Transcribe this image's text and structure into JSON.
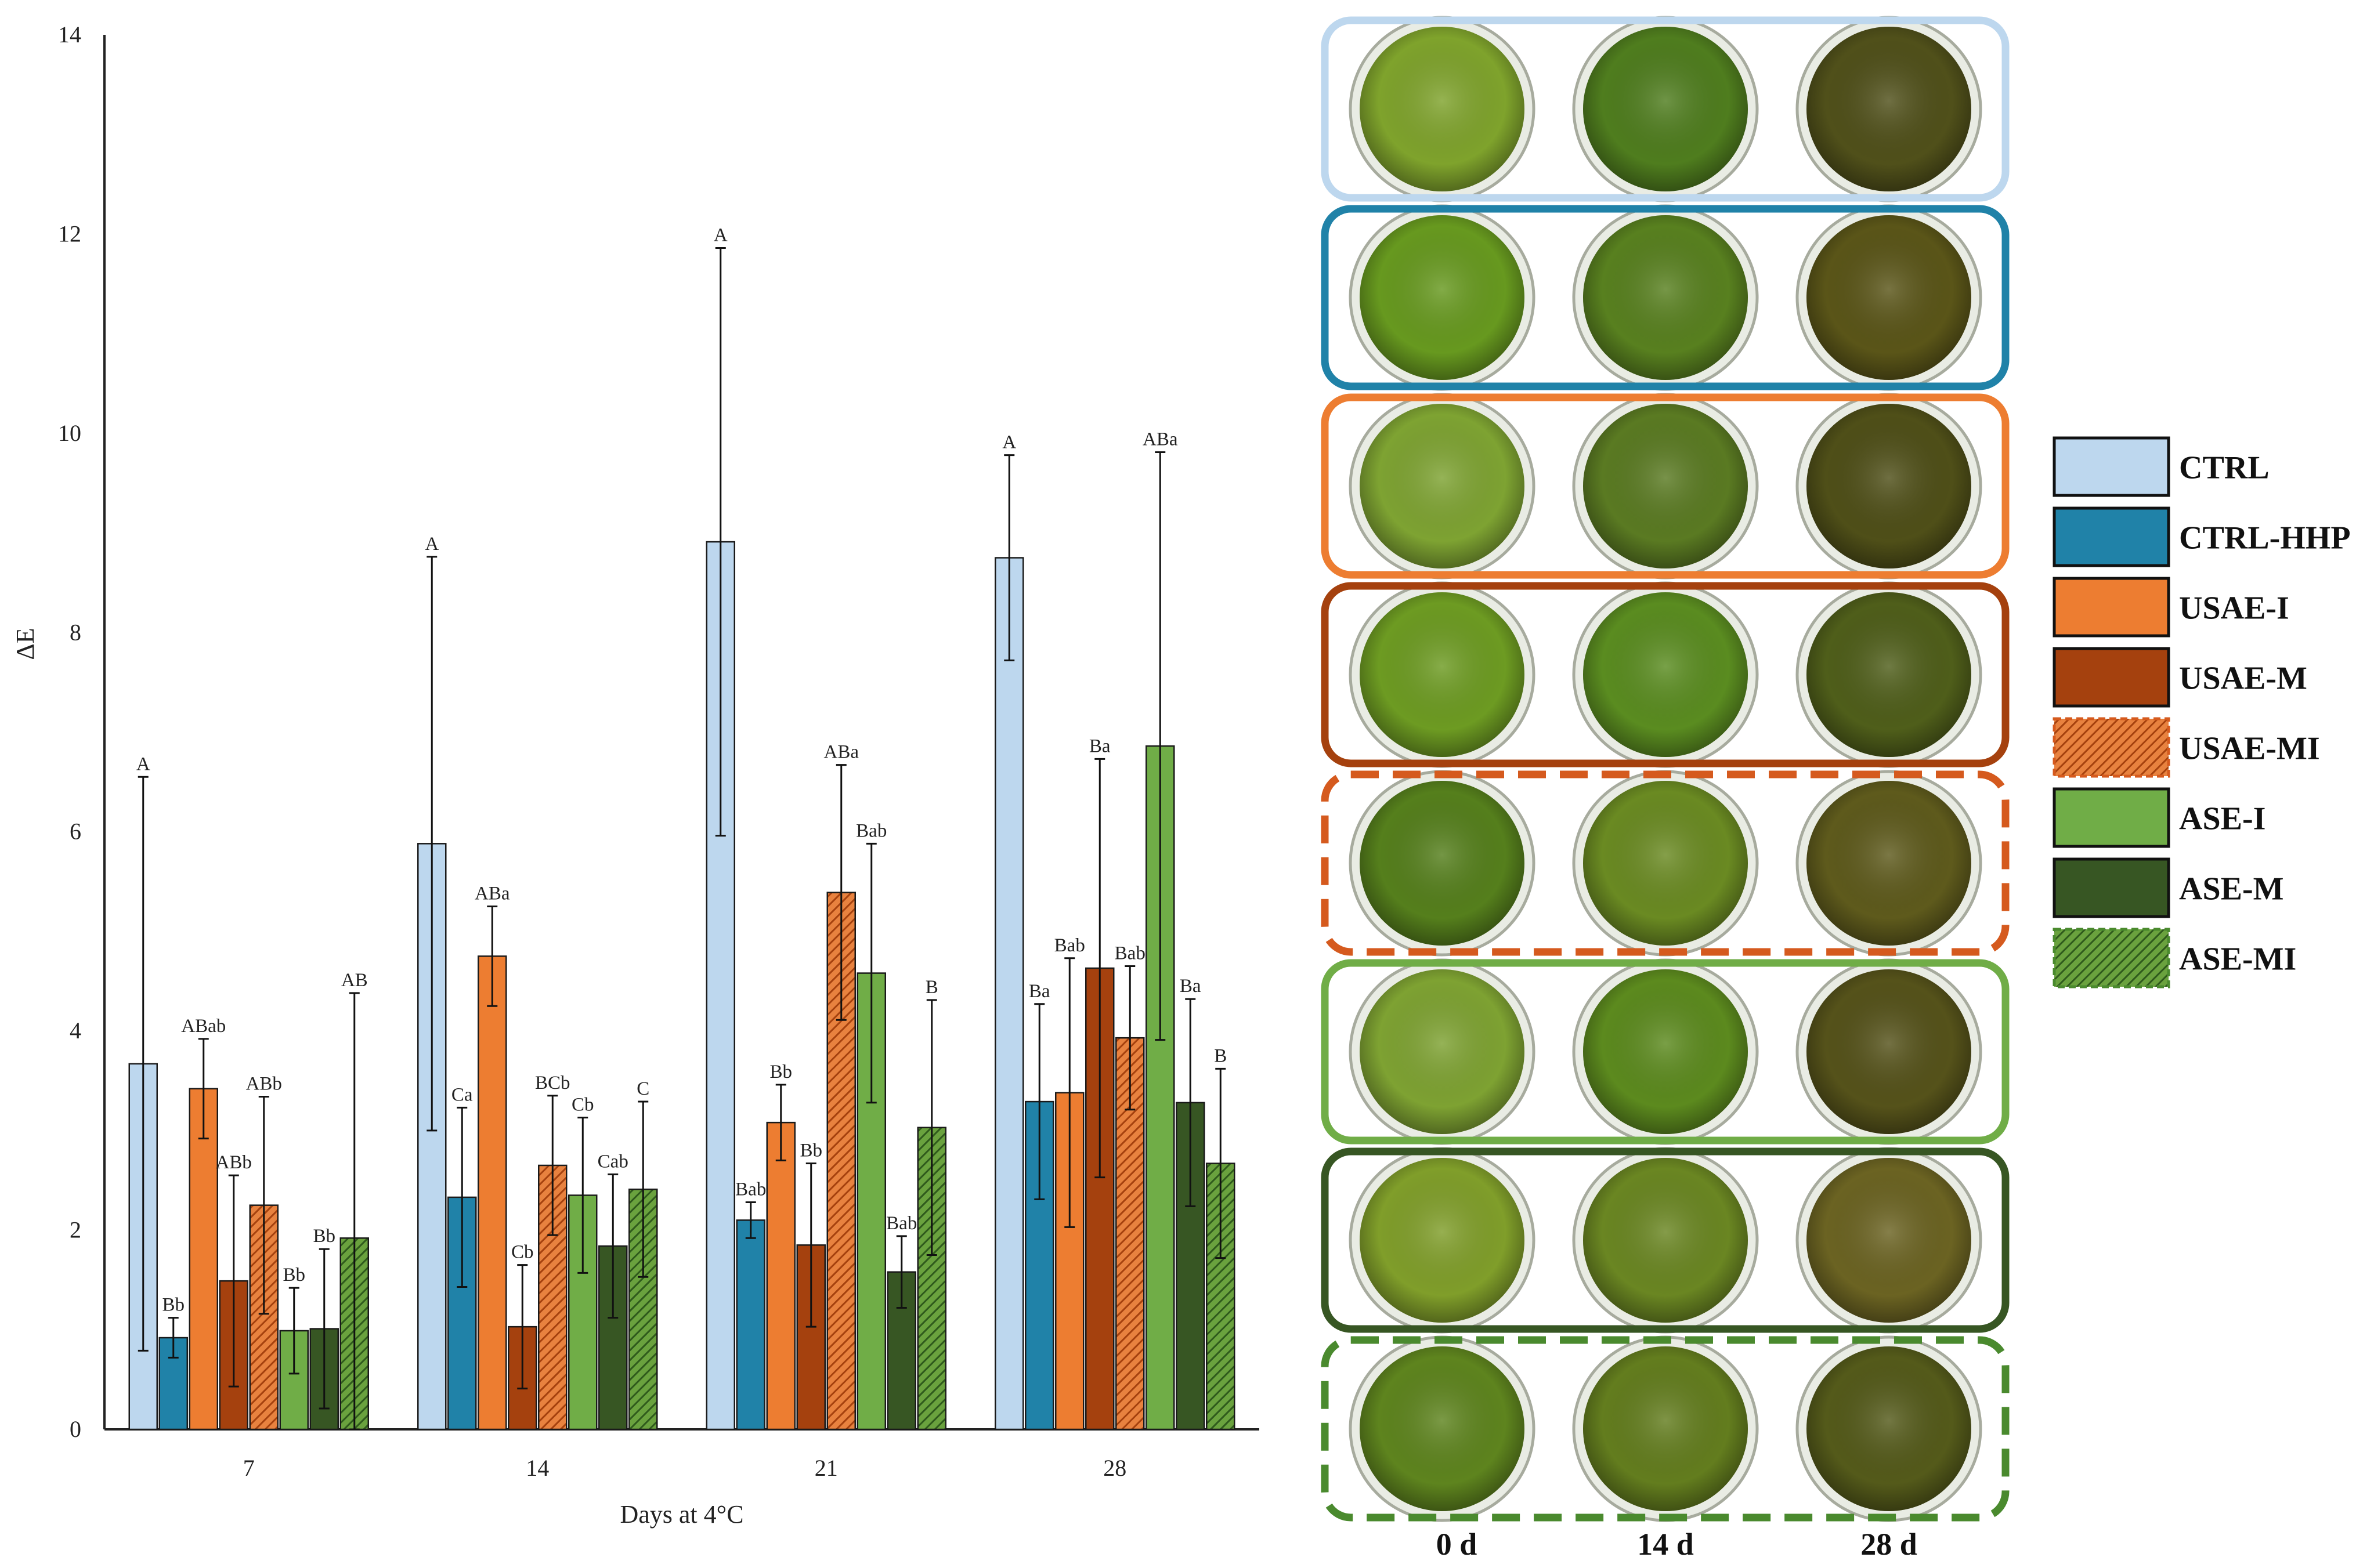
{
  "chart_data": {
    "type": "bar",
    "ylabel": "ΔE",
    "xlabel": "Days at 4°C",
    "ylim": [
      0,
      14
    ],
    "yticks": [
      "0",
      "2",
      "4",
      "6",
      "8",
      "10",
      "12",
      "14"
    ],
    "categories": [
      "7",
      "14",
      "21",
      "28"
    ],
    "series": [
      {
        "name": "CTRL",
        "color": "#bdd7ee",
        "pattern": false,
        "values": [
          3.67,
          5.88,
          8.91,
          8.75
        ],
        "errors": [
          2.88,
          2.88,
          2.95,
          1.03
        ],
        "labels": [
          "A",
          "A",
          "A",
          "A"
        ]
      },
      {
        "name": "CTRL-HHP",
        "color": "#2082a8",
        "pattern": false,
        "values": [
          0.92,
          2.33,
          2.1,
          3.29
        ],
        "errors": [
          0.2,
          0.9,
          0.18,
          0.98
        ],
        "labels": [
          "Bb",
          "Ca",
          "Bab",
          "Ba"
        ]
      },
      {
        "name": "USAE-I",
        "color": "#ed7d31",
        "pattern": false,
        "values": [
          3.42,
          4.75,
          3.08,
          3.38
        ],
        "errors": [
          0.5,
          0.5,
          0.38,
          1.35
        ],
        "labels": [
          "ABab",
          "ABa",
          "Bb",
          "Bab"
        ]
      },
      {
        "name": "USAE-M",
        "color": "#a5410e",
        "pattern": false,
        "values": [
          1.49,
          1.03,
          1.85,
          4.63
        ],
        "errors": [
          1.06,
          0.62,
          0.82,
          2.1
        ],
        "labels": [
          "ABb",
          "Cb",
          "Bb",
          "Ba"
        ]
      },
      {
        "name": "USAE-MI",
        "color": "#d55a1e",
        "pattern": true,
        "values": [
          2.25,
          2.65,
          5.39,
          3.93
        ],
        "errors": [
          1.09,
          0.7,
          1.28,
          0.72
        ],
        "labels": [
          "ABb",
          "BCb",
          "ABa",
          "Bab"
        ]
      },
      {
        "name": "ASE-I",
        "color": "#70ad47",
        "pattern": false,
        "values": [
          0.99,
          2.35,
          4.58,
          6.86
        ],
        "errors": [
          0.43,
          0.78,
          1.3,
          2.95
        ],
        "labels": [
          "Bb",
          "Cb",
          "Bab",
          "ABa"
        ]
      },
      {
        "name": "ASE-M",
        "color": "#375623",
        "pattern": false,
        "values": [
          1.01,
          1.84,
          1.58,
          3.28
        ],
        "errors": [
          0.8,
          0.72,
          0.36,
          1.04
        ],
        "labels": [
          "Bb",
          "Cab",
          "Bab",
          "Ba"
        ]
      },
      {
        "name": "ASE-MI",
        "color": "#4a8a2e",
        "pattern": true,
        "values": [
          1.92,
          2.41,
          3.03,
          2.67
        ],
        "errors": [
          2.46,
          0.88,
          1.28,
          0.95
        ],
        "labels": [
          "AB",
          "C",
          "B",
          "B"
        ]
      }
    ]
  },
  "photo_panel": {
    "rows": [
      {
        "name": "CTRL",
        "border_color": "#bdd7ee",
        "dashed": false,
        "dish_colors": [
          "#7fa32c",
          "#4f7d1e",
          "#50501a"
        ]
      },
      {
        "name": "CTRL-HHP",
        "border_color": "#2082a8",
        "dashed": false,
        "dish_colors": [
          "#67991f",
          "#58801f",
          "#5a5518"
        ]
      },
      {
        "name": "USAE-I",
        "border_color": "#ed7d31",
        "dashed": false,
        "dish_colors": [
          "#7ea332",
          "#5a7a22",
          "#4f4f18"
        ]
      },
      {
        "name": "USAE-M",
        "border_color": "#a5410e",
        "dashed": false,
        "dish_colors": [
          "#6d9b22",
          "#5a8c20",
          "#4f5e1a"
        ]
      },
      {
        "name": "USAE-MI",
        "border_color": "#d55a1e",
        "dashed": true,
        "dish_colors": [
          "#557f1c",
          "#6a8a22",
          "#5e5a1c"
        ]
      },
      {
        "name": "ASE-I",
        "border_color": "#70ad47",
        "dashed": false,
        "dish_colors": [
          "#7ea232",
          "#5c8a1e",
          "#55521a"
        ]
      },
      {
        "name": "ASE-M",
        "border_color": "#375623",
        "dashed": false,
        "dish_colors": [
          "#809e2a",
          "#6a8622",
          "#6b6322"
        ]
      },
      {
        "name": "ASE-MI",
        "border_color": "#4a8a2e",
        "dashed": true,
        "dish_colors": [
          "#5e841e",
          "#637d1e",
          "#545a1a"
        ]
      }
    ],
    "columns": [
      "0 d",
      "14 d",
      "28 d"
    ]
  },
  "legend": {
    "items": [
      "CTRL",
      "CTRL-HHP",
      "USAE-I",
      "USAE-M",
      "USAE-MI",
      "ASE-I",
      "ASE-M",
      "ASE-MI"
    ]
  }
}
